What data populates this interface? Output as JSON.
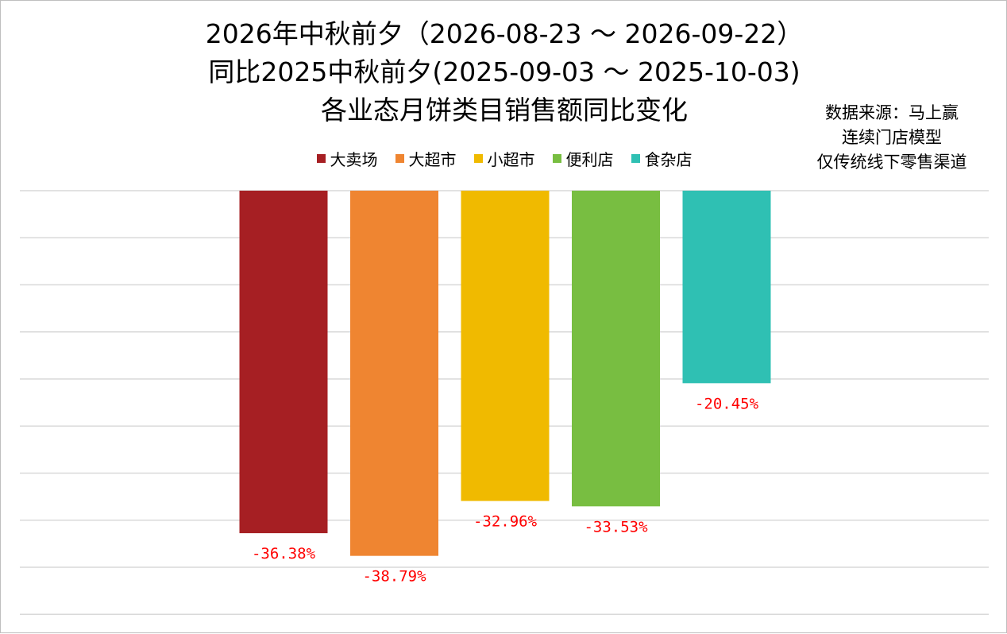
{
  "chart_data": {
    "type": "bar",
    "title_lines": [
      "2026年中秋前夕（2026-08-23 ～ 2026-09-22）",
      "同比2025中秋前夕(2025-09-03 ～ 2025-10-03)",
      "各业态月饼类目销售额同比变化"
    ],
    "source_note": [
      "数据来源：马上赢",
      "连续门店模型",
      "仅传统线下零售渠道"
    ],
    "categories": [
      "大卖场",
      "大超市",
      "小超市",
      "便利店",
      "食杂店"
    ],
    "values": [
      -36.38,
      -38.79,
      -32.96,
      -33.53,
      -20.45
    ],
    "value_labels": [
      "-36.38%",
      "-38.79%",
      "-32.96%",
      "-33.53%",
      "-20.45%"
    ],
    "colors": [
      "#A61F23",
      "#EF8531",
      "#F0BA00",
      "#78BE41",
      "#2FC0B3"
    ],
    "label_color": "#FF0000",
    "ylim": [
      -45,
      0
    ],
    "grid": true,
    "legend_position": "top",
    "xlabel": "",
    "ylabel": ""
  }
}
